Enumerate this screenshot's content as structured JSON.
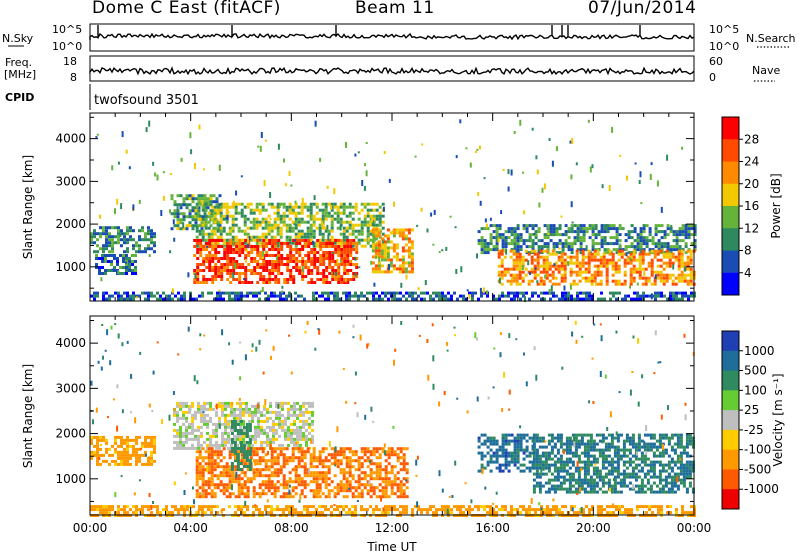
{
  "header": {
    "title": "Dome C East (fitACF)",
    "beam": "Beam 11",
    "date": "07/Jun/2014"
  },
  "status_panels": {
    "nsky_label": "N.Sky",
    "nsky_ticks": [
      "10^5",
      "10^0"
    ],
    "nsearch_label": "N.Search",
    "nsearch_ticks": [
      "10^5",
      "10^0"
    ],
    "freq_label": "Freq.",
    "freq_unit": "[MHz]",
    "freq_ticks": [
      "18",
      "8"
    ],
    "nave_label": "Nave",
    "nave_ticks": [
      "60",
      "0"
    ],
    "cpid_label": "CPID",
    "cpid_text": "twofsound 3501"
  },
  "colorbars": {
    "power": {
      "label": "Power [dB]",
      "ticks": [
        "28",
        "24",
        "20",
        "16",
        "12",
        "8",
        "4"
      ],
      "colors": [
        "#ff0000",
        "#ff4a00",
        "#ff8a00",
        "#f2c800",
        "#66b33c",
        "#2e8a5e",
        "#1a4db3",
        "#0000ff"
      ]
    },
    "velocity": {
      "label": "Velocity [m s⁻¹]",
      "ticks": [
        "1000",
        "500",
        "100",
        "25",
        "-25",
        "-100",
        "-500",
        "-1000"
      ],
      "colors": [
        "#1f3fb4",
        "#1f6e99",
        "#2f8a5f",
        "#66cc33",
        "#bfbfbf",
        "#ffcc00",
        "#ff9900",
        "#ff5a00",
        "#ee0000"
      ]
    }
  },
  "chart_data": [
    {
      "type": "heatmap",
      "panel": "power",
      "ylabel": "Slant Range [km]",
      "yticks": [
        "4000",
        "3000",
        "2000",
        "1000"
      ],
      "ylim": [
        200,
        4600
      ],
      "xlim": [
        0,
        24
      ],
      "echo_bands": [
        {
          "t0": 0.0,
          "t1": 2.6,
          "r0": 1350,
          "r1": 1950,
          "level_db": 10
        },
        {
          "t0": 0.2,
          "t1": 1.8,
          "r0": 850,
          "r1": 1300,
          "level_db": 8
        },
        {
          "t0": 3.2,
          "t1": 5.2,
          "r0": 1900,
          "r1": 2700,
          "level_db": 12
        },
        {
          "t0": 4.2,
          "t1": 11.6,
          "r0": 1500,
          "r1": 2500,
          "level_db": 14
        },
        {
          "t0": 4.1,
          "t1": 10.6,
          "r0": 650,
          "r1": 1650,
          "level_db": 27
        },
        {
          "t0": 11.2,
          "t1": 12.8,
          "r0": 900,
          "r1": 1900,
          "level_db": 20
        },
        {
          "t0": 15.4,
          "t1": 24.0,
          "r0": 1350,
          "r1": 2000,
          "level_db": 10
        },
        {
          "t0": 16.2,
          "t1": 24.0,
          "r0": 600,
          "r1": 1400,
          "level_db": 22
        },
        {
          "t0": 0.0,
          "t1": 24.0,
          "r0": 220,
          "r1": 420,
          "level_db": 6
        }
      ]
    },
    {
      "type": "heatmap",
      "panel": "velocity",
      "xlabel": "Time UT",
      "ylabel": "Slant Range [km]",
      "xticks": [
        "00:00",
        "04:00",
        "08:00",
        "12:00",
        "16:00",
        "20:00",
        "00:00"
      ],
      "yticks": [
        "4000",
        "3000",
        "2000",
        "1000"
      ],
      "ylim": [
        200,
        4600
      ],
      "xlim": [
        0,
        24
      ],
      "echo_bands": [
        {
          "t0": 0.0,
          "t1": 2.6,
          "r0": 1350,
          "r1": 1950,
          "velocity": -100
        },
        {
          "t0": 3.3,
          "t1": 8.8,
          "r0": 1700,
          "r1": 2700,
          "velocity": 0
        },
        {
          "t0": 4.2,
          "t1": 12.6,
          "r0": 600,
          "r1": 1700,
          "velocity": -300
        },
        {
          "t0": 5.6,
          "t1": 6.4,
          "r0": 1200,
          "r1": 2300,
          "velocity": 150
        },
        {
          "t0": 15.4,
          "t1": 17.6,
          "r0": 1200,
          "r1": 2000,
          "velocity": 500
        },
        {
          "t0": 17.6,
          "t1": 24.0,
          "r0": 700,
          "r1": 2000,
          "velocity": 300
        },
        {
          "t0": 0.0,
          "t1": 24.0,
          "r0": 220,
          "r1": 420,
          "velocity": -100
        }
      ]
    }
  ]
}
